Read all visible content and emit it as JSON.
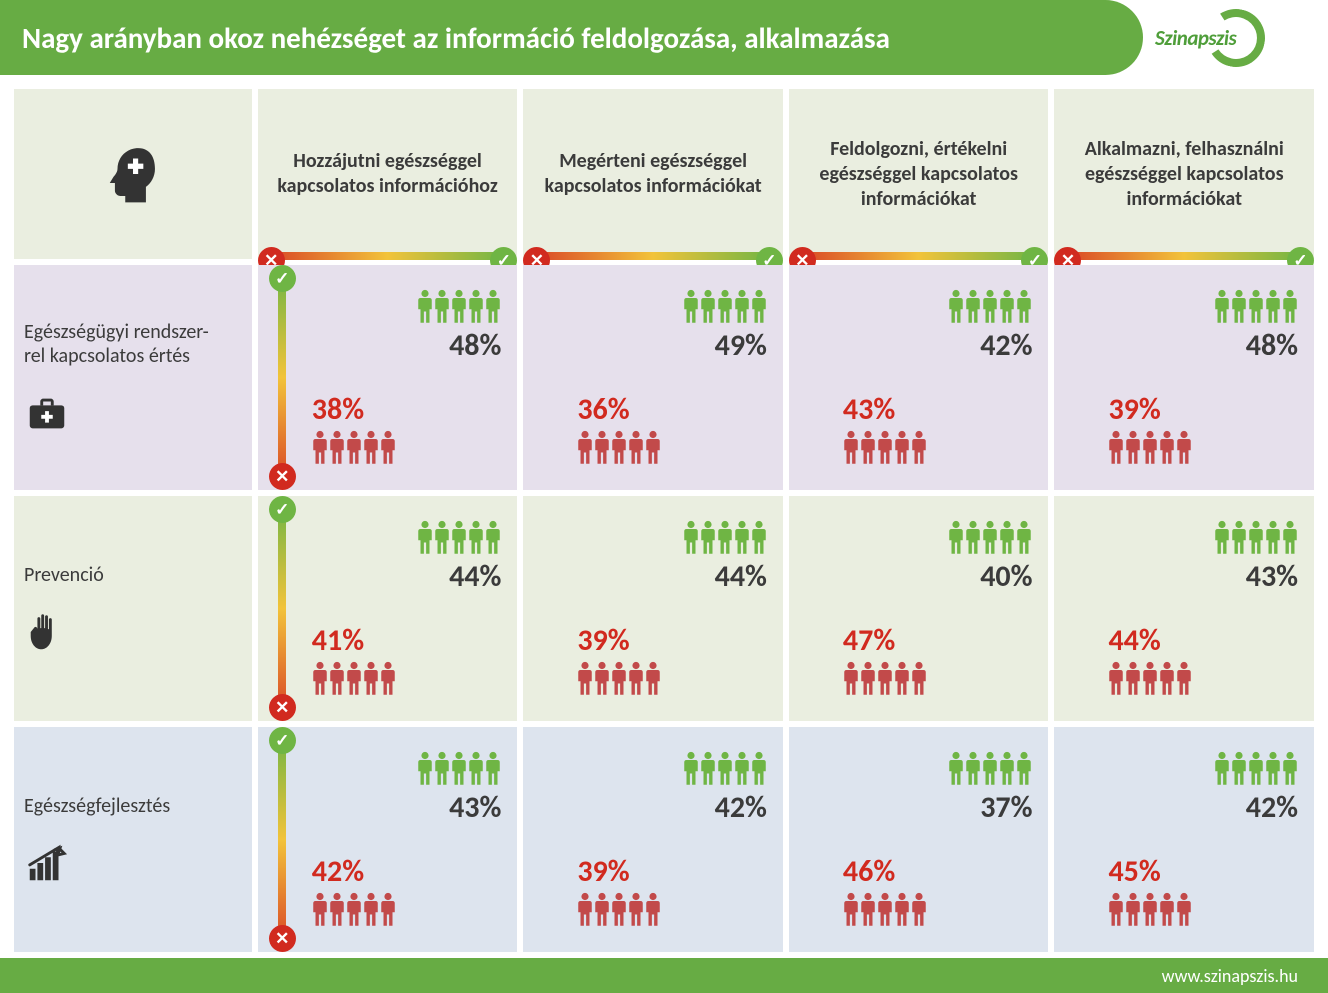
{
  "slide": {
    "title": "Nagy arányban okoz nehézséget az információ feldolgozása, alkalmazása",
    "logo_text": "Szinapszis",
    "footer_url": "www.szinapszis.hu"
  },
  "colors": {
    "header_bg": "#67ac44",
    "good_green": "#6fb544",
    "bad_red": "#c24a4a",
    "bad_text": "#d12a1f",
    "dark_text": "#3b3b3b",
    "row_bg": {
      "header": "#eaeee0",
      "r1": "#e6e0ec",
      "r2": "#eaeee0",
      "r3": "#dde4ee"
    },
    "icon_dark": "#333333"
  },
  "columns": [
    {
      "title": "Hozzájutni egészséggel kapcsolatos információhoz"
    },
    {
      "title": "Megérteni egészséggel kapcsolatos információkat"
    },
    {
      "title": "Feldolgozni, értékelni egészséggel kapcsolatos információkat"
    },
    {
      "title": "Alkalmazni, felhasználni egészséggel kapcsolatos információkat"
    }
  ],
  "rows": [
    {
      "label": "Egészségügyi rendszer-\nrel kapcsolatos értés",
      "icon": "briefcase-medical",
      "cells": [
        {
          "good": "48%",
          "bad": "38%"
        },
        {
          "good": "49%",
          "bad": "36%"
        },
        {
          "good": "42%",
          "bad": "43%"
        },
        {
          "good": "48%",
          "bad": "39%"
        }
      ]
    },
    {
      "label": "Prevenció",
      "icon": "hand",
      "cells": [
        {
          "good": "44%",
          "bad": "41%"
        },
        {
          "good": "44%",
          "bad": "39%"
        },
        {
          "good": "40%",
          "bad": "47%"
        },
        {
          "good": "43%",
          "bad": "44%"
        }
      ]
    },
    {
      "label": "Egészségfejlesztés",
      "icon": "growth-chart",
      "cells": [
        {
          "good": "43%",
          "bad": "42%"
        },
        {
          "good": "42%",
          "bad": "39%"
        },
        {
          "good": "37%",
          "bad": "46%"
        },
        {
          "good": "42%",
          "bad": "45%"
        }
      ]
    }
  ],
  "people_count": 5
}
